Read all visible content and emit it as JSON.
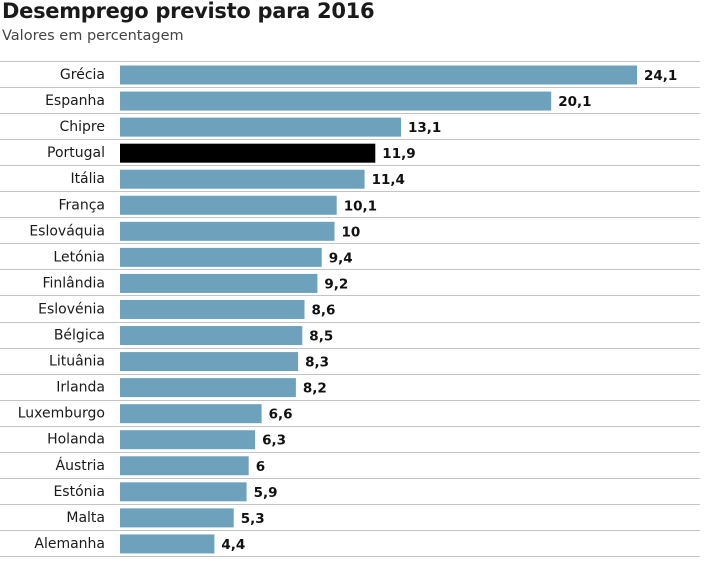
{
  "header": {
    "title": "Desemprego previsto para 2016",
    "subtitle": "Valores em percentagem"
  },
  "colors": {
    "bar": "#6ea2bc",
    "highlight": "#000000",
    "grid": "#c4c4c4"
  },
  "chart_data": {
    "type": "bar",
    "orientation": "horizontal",
    "title": "Desemprego previsto para 2016",
    "subtitle": "Valores em percentagem",
    "categories": [
      "Grécia",
      "Espanha",
      "Chipre",
      "Portugal",
      "Itália",
      "França",
      "Eslováquia",
      "Letónia",
      "Finlândia",
      "Eslovénia",
      "Bélgica",
      "Lituânia",
      "Irlanda",
      "Luxemburgo",
      "Holanda",
      "Áustria",
      "Estónia",
      "Malta",
      "Alemanha"
    ],
    "values": [
      24.1,
      20.1,
      13.1,
      11.9,
      11.4,
      10.1,
      10,
      9.4,
      9.2,
      8.6,
      8.5,
      8.3,
      8.2,
      6.6,
      6.3,
      6,
      5.9,
      5.3,
      4.4
    ],
    "value_labels": [
      "24,1",
      "20,1",
      "13,1",
      "11,9",
      "11,4",
      "10,1",
      "10",
      "9,4",
      "9,2",
      "8,6",
      "8,5",
      "8,3",
      "8,2",
      "6,6",
      "6,3",
      "6",
      "5,9",
      "5,3",
      "4,4"
    ],
    "highlight": "Portugal",
    "xlim": [
      0,
      24.1
    ],
    "xlabel": "",
    "ylabel": "",
    "grid": true,
    "legend": "none"
  }
}
